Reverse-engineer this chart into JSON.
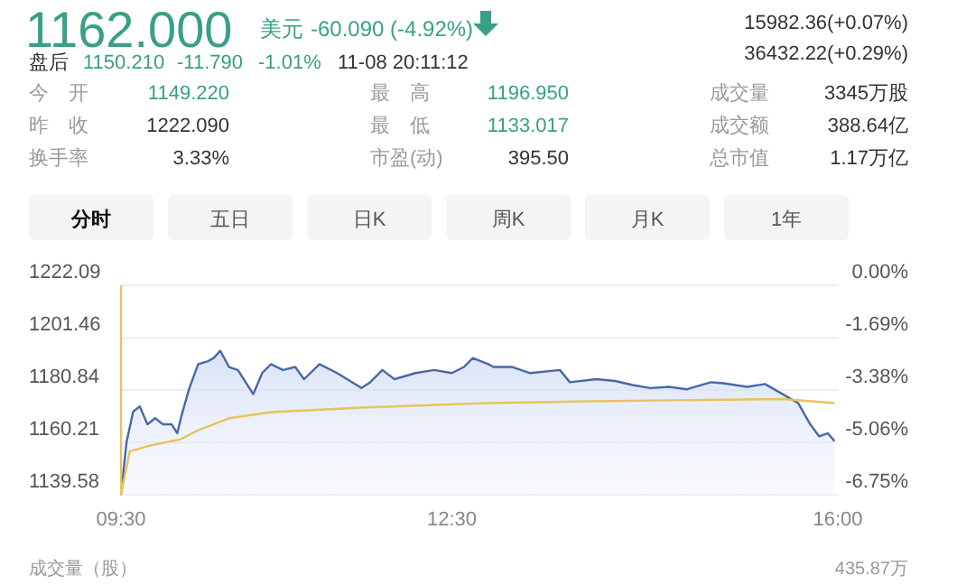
{
  "chart_data": {
    "type": "line",
    "title": "1162.000",
    "annotations": [
      "美元",
      "-60.090 (-4.92%)",
      "15982.36(+0.07%)",
      "盘后",
      "1150.210",
      "-11.790",
      "-1.01%",
      "11-08 20:11:12",
      "36432.22(+0.29%)",
      "今　开",
      "1149.220",
      "最　高",
      "1196.950",
      "成交量",
      "3345万股",
      "昨　收",
      "1222.090",
      "最　低",
      "1133.017",
      "成交额",
      "388.64亿",
      "换手率",
      "3.33%",
      "市盈(动)",
      "395.50",
      "总市值",
      "1.17万亿",
      "分时",
      "五日",
      "日K",
      "周K",
      "月K",
      "1年",
      "成交量（股）",
      "435.87万"
    ],
    "xlim": [
      9.5,
      16
    ],
    "xticks": [
      {
        "value": 9.5,
        "label": "09:30"
      },
      {
        "value": 12.5,
        "label": "12:30"
      },
      {
        "value": 16,
        "label": "16:00"
      }
    ],
    "ylim": [
      1139.58,
      1222.09
    ],
    "yticks": [
      1139.58,
      1160.21,
      1180.84,
      1201.46,
      1222.09
    ],
    "y2lim": [
      -6.75,
      0
    ],
    "y2ticks": [
      {
        "value": -6.75,
        "label": "-6.75%"
      },
      {
        "value": -5.06,
        "label": "-5.06%"
      },
      {
        "value": -3.38,
        "label": "-3.38%"
      },
      {
        "value": -1.69,
        "label": "-1.69%"
      },
      {
        "value": 0,
        "label": "0.00%"
      }
    ],
    "grid": "y",
    "series": [
      {
        "type": "area",
        "color": "#4a68a6",
        "x": [
          9.5,
          9.55,
          9.61,
          9.67,
          9.74,
          9.81,
          9.88,
          9.96,
          10.01,
          10.05,
          10.12,
          10.2,
          10.29,
          10.34,
          10.4,
          10.48,
          10.56,
          10.7,
          10.78,
          10.86,
          10.97,
          11.08,
          11.16,
          11.3,
          11.46,
          11.68,
          11.76,
          11.87,
          11.98,
          12.17,
          12.34,
          12.5,
          12.61,
          12.69,
          12.83,
          12.88,
          13.05,
          13.21,
          13.48,
          13.57,
          13.81,
          13.98,
          14.14,
          14.3,
          14.47,
          14.63,
          14.85,
          14.96,
          15.18,
          15.34,
          15.5,
          15.64,
          15.75,
          15.83,
          15.91,
          15.97
        ],
        "values": [
          1139.6,
          1160.2,
          1172.3,
          1174.4,
          1167.3,
          1169.7,
          1167.3,
          1167.3,
          1163.8,
          1170.9,
          1181.6,
          1191.0,
          1192.2,
          1193.4,
          1196.3,
          1189.9,
          1188.7,
          1179.2,
          1187.5,
          1191.0,
          1188.7,
          1189.9,
          1185.1,
          1191.0,
          1187.5,
          1181.6,
          1183.9,
          1188.7,
          1185.1,
          1187.5,
          1188.7,
          1187.5,
          1189.9,
          1193.4,
          1191.0,
          1189.9,
          1189.9,
          1187.5,
          1188.7,
          1183.9,
          1185.1,
          1184.4,
          1182.8,
          1181.6,
          1182.1,
          1181.1,
          1183.9,
          1183.5,
          1182.1,
          1183.2,
          1179.2,
          1175.7,
          1167.3,
          1162.6,
          1163.8,
          1160.7
        ]
      },
      {
        "type": "line",
        "color": "#e6c35c",
        "x": [
          9.5,
          9.5,
          9.58,
          9.77,
          10.04,
          10.2,
          10.48,
          10.86,
          11.68,
          12.83,
          13.76,
          15.5,
          15.97
        ],
        "values": [
          1222,
          1139.6,
          1156.7,
          1159.0,
          1161.4,
          1165.0,
          1169.7,
          1172.1,
          1173.9,
          1175.7,
          1176.4,
          1177.3,
          1175.7
        ]
      }
    ]
  }
}
